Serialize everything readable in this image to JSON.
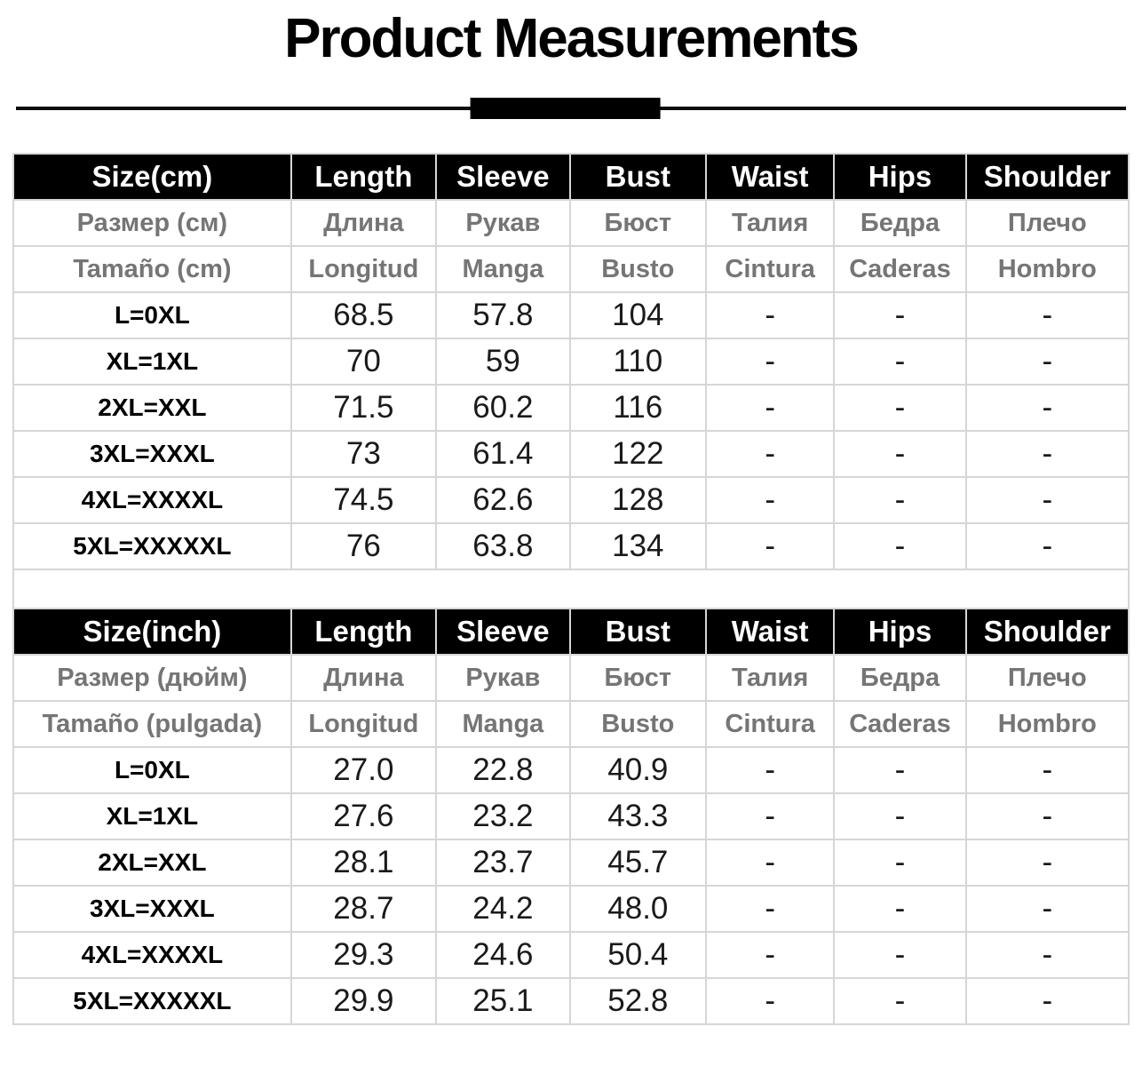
{
  "title": "Product Measurements",
  "colors": {
    "header_bg": "#000000",
    "header_text": "#ffffff",
    "secondary_text": "#757575",
    "grid_line": "#d6d6d6"
  },
  "tables": [
    {
      "name": "cm",
      "header": [
        "Size(cm)",
        "Length",
        "Sleeve",
        "Bust",
        "Waist",
        "Hips",
        "Shoulder"
      ],
      "header_ru": [
        "Размер (см)",
        "Длина",
        "Рукав",
        "Бюст",
        "Талия",
        "Бедра",
        "Плечо"
      ],
      "header_es": [
        "Tamaño (cm)",
        "Longitud",
        "Manga",
        "Busto",
        "Cintura",
        "Caderas",
        "Hombro"
      ],
      "rows": [
        {
          "size": "L=0XL",
          "values": [
            "68.5",
            "57.8",
            "104",
            "-",
            "-",
            "-"
          ]
        },
        {
          "size": "XL=1XL",
          "values": [
            "70",
            "59",
            "110",
            "-",
            "-",
            "-"
          ]
        },
        {
          "size": "2XL=XXL",
          "values": [
            "71.5",
            "60.2",
            "116",
            "-",
            "-",
            "-"
          ]
        },
        {
          "size": "3XL=XXXL",
          "values": [
            "73",
            "61.4",
            "122",
            "-",
            "-",
            "-"
          ]
        },
        {
          "size": "4XL=XXXXL",
          "values": [
            "74.5",
            "62.6",
            "128",
            "-",
            "-",
            "-"
          ]
        },
        {
          "size": "5XL=XXXXXL",
          "values": [
            "76",
            "63.8",
            "134",
            "-",
            "-",
            "-"
          ]
        }
      ]
    },
    {
      "name": "inch",
      "header": [
        "Size(inch)",
        "Length",
        "Sleeve",
        "Bust",
        "Waist",
        "Hips",
        "Shoulder"
      ],
      "header_ru": [
        "Размер (дюйм)",
        "Длина",
        "Рукав",
        "Бюст",
        "Талия",
        "Бедра",
        "Плечо"
      ],
      "header_es": [
        "Tamaño (pulgada)",
        "Longitud",
        "Manga",
        "Busto",
        "Cintura",
        "Caderas",
        "Hombro"
      ],
      "rows": [
        {
          "size": "L=0XL",
          "values": [
            "27.0",
            "22.8",
            "40.9",
            "-",
            "-",
            "-"
          ]
        },
        {
          "size": "XL=1XL",
          "values": [
            "27.6",
            "23.2",
            "43.3",
            "-",
            "-",
            "-"
          ]
        },
        {
          "size": "2XL=XXL",
          "values": [
            "28.1",
            "23.7",
            "45.7",
            "-",
            "-",
            "-"
          ]
        },
        {
          "size": "3XL=XXXL",
          "values": [
            "28.7",
            "24.2",
            "48.0",
            "-",
            "-",
            "-"
          ]
        },
        {
          "size": "4XL=XXXXL",
          "values": [
            "29.3",
            "24.6",
            "50.4",
            "-",
            "-",
            "-"
          ]
        },
        {
          "size": "5XL=XXXXXL",
          "values": [
            "29.9",
            "25.1",
            "52.8",
            "-",
            "-",
            "-"
          ]
        }
      ]
    }
  ],
  "chart_data": [
    {
      "type": "table",
      "title": "Product Measurements (cm)",
      "columns": [
        "Size(cm)",
        "Length",
        "Sleeve",
        "Bust",
        "Waist",
        "Hips",
        "Shoulder"
      ],
      "rows": [
        [
          "L=0XL",
          68.5,
          57.8,
          104,
          "-",
          "-",
          "-"
        ],
        [
          "XL=1XL",
          70,
          59,
          110,
          "-",
          "-",
          "-"
        ],
        [
          "2XL=XXL",
          71.5,
          60.2,
          116,
          "-",
          "-",
          "-"
        ],
        [
          "3XL=XXXL",
          73,
          61.4,
          122,
          "-",
          "-",
          "-"
        ],
        [
          "4XL=XXXXL",
          74.5,
          62.6,
          128,
          "-",
          "-",
          "-"
        ],
        [
          "5XL=XXXXXL",
          76,
          63.8,
          134,
          "-",
          "-",
          "-"
        ]
      ]
    },
    {
      "type": "table",
      "title": "Product Measurements (inch)",
      "columns": [
        "Size(inch)",
        "Length",
        "Sleeve",
        "Bust",
        "Waist",
        "Hips",
        "Shoulder"
      ],
      "rows": [
        [
          "L=0XL",
          27.0,
          22.8,
          40.9,
          "-",
          "-",
          "-"
        ],
        [
          "XL=1XL",
          27.6,
          23.2,
          43.3,
          "-",
          "-",
          "-"
        ],
        [
          "2XL=XXL",
          28.1,
          23.7,
          45.7,
          "-",
          "-",
          "-"
        ],
        [
          "3XL=XXXL",
          28.7,
          24.2,
          48.0,
          "-",
          "-",
          "-"
        ],
        [
          "4XL=XXXXL",
          29.3,
          24.6,
          50.4,
          "-",
          "-",
          "-"
        ],
        [
          "5XL=XXXXXL",
          29.9,
          25.1,
          52.8,
          "-",
          "-",
          "-"
        ]
      ]
    }
  ]
}
